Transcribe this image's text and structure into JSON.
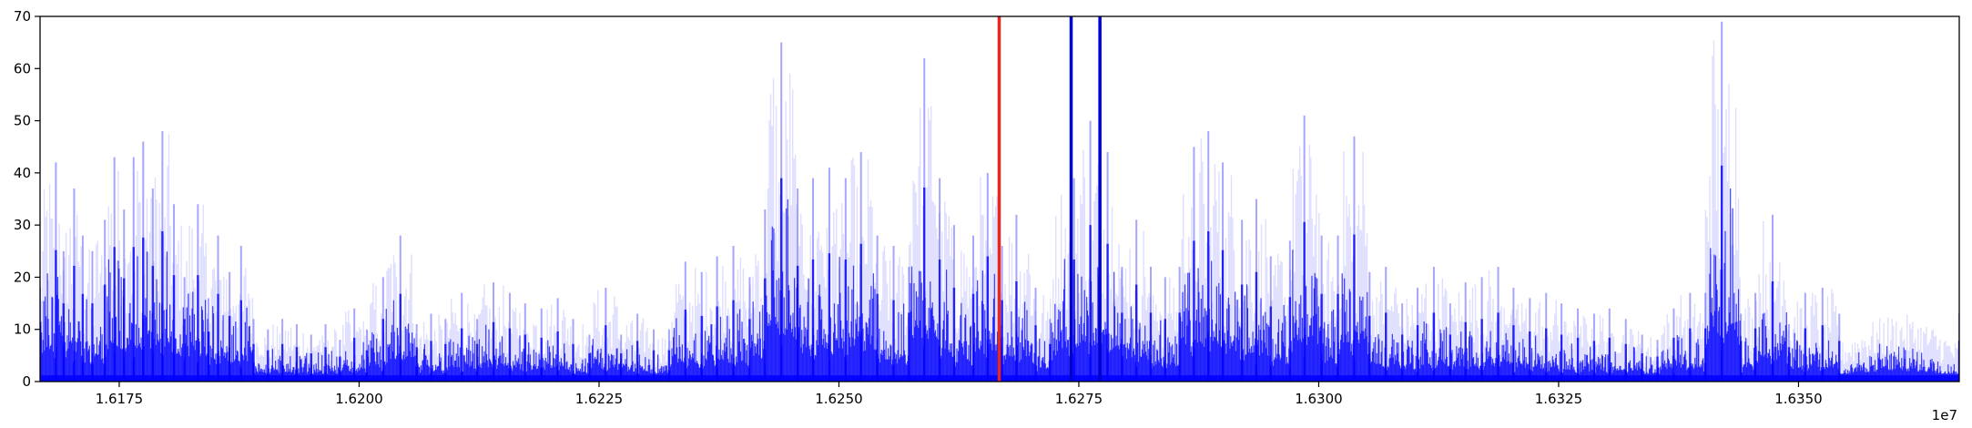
{
  "chart_data": {
    "type": "line",
    "title": "",
    "xlabel": "",
    "ylabel": "",
    "x_offset_label": "1e7",
    "xlim": [
      16.16675,
      16.36675
    ],
    "ylim": [
      0,
      70
    ],
    "grid": false,
    "legend": "none",
    "x_ticks": [
      {
        "value": 16.175,
        "label": "1.6175"
      },
      {
        "value": 16.2,
        "label": "1.6200"
      },
      {
        "value": 16.225,
        "label": "1.6225"
      },
      {
        "value": 16.25,
        "label": "1.6250"
      },
      {
        "value": 16.275,
        "label": "1.6275"
      },
      {
        "value": 16.3,
        "label": "1.6300"
      },
      {
        "value": 16.325,
        "label": "1.6325"
      },
      {
        "value": 16.35,
        "label": "1.6350"
      }
    ],
    "y_ticks": [
      {
        "value": 0,
        "label": "0"
      },
      {
        "value": 10,
        "label": "10"
      },
      {
        "value": 20,
        "label": "20"
      },
      {
        "value": 30,
        "label": "30"
      },
      {
        "value": 40,
        "label": "40"
      },
      {
        "value": 50,
        "label": "50"
      },
      {
        "value": 60,
        "label": "60"
      },
      {
        "value": 70,
        "label": "70"
      }
    ],
    "series_color": "#0000ff",
    "envelope": [
      [
        16.16675,
        18
      ],
      [
        16.1684,
        42
      ],
      [
        16.1692,
        25
      ],
      [
        16.1703,
        37
      ],
      [
        16.1712,
        28
      ],
      [
        16.1722,
        25
      ],
      [
        16.1735,
        31
      ],
      [
        16.1745,
        43
      ],
      [
        16.1755,
        33
      ],
      [
        16.1765,
        43
      ],
      [
        16.1775,
        46
      ],
      [
        16.1785,
        37
      ],
      [
        16.1795,
        48
      ],
      [
        16.1807,
        34
      ],
      [
        16.1818,
        20
      ],
      [
        16.1832,
        34
      ],
      [
        16.1843,
        16
      ],
      [
        16.1853,
        28
      ],
      [
        16.1865,
        21
      ],
      [
        16.1877,
        26
      ],
      [
        16.189,
        12
      ],
      [
        16.1905,
        10
      ],
      [
        16.192,
        12
      ],
      [
        16.1935,
        11
      ],
      [
        16.195,
        9
      ],
      [
        16.1965,
        11
      ],
      [
        16.198,
        8
      ],
      [
        16.1995,
        14
      ],
      [
        16.2008,
        10
      ],
      [
        16.2025,
        20
      ],
      [
        16.2043,
        28
      ],
      [
        16.206,
        11
      ],
      [
        16.2075,
        13
      ],
      [
        16.209,
        12
      ],
      [
        16.2107,
        17
      ],
      [
        16.2123,
        12
      ],
      [
        16.214,
        19
      ],
      [
        16.2157,
        17
      ],
      [
        16.2173,
        15
      ],
      [
        16.219,
        14
      ],
      [
        16.2207,
        16
      ],
      [
        16.2223,
        12
      ],
      [
        16.224,
        9
      ],
      [
        16.2257,
        18
      ],
      [
        16.2273,
        9
      ],
      [
        16.229,
        13
      ],
      [
        16.2307,
        10
      ],
      [
        16.2323,
        10
      ],
      [
        16.234,
        23
      ],
      [
        16.2357,
        21
      ],
      [
        16.2373,
        24
      ],
      [
        16.239,
        26
      ],
      [
        16.2407,
        20
      ],
      [
        16.2423,
        33
      ],
      [
        16.244,
        65
      ],
      [
        16.2457,
        37
      ],
      [
        16.2473,
        39
      ],
      [
        16.249,
        41
      ],
      [
        16.2507,
        39
      ],
      [
        16.2523,
        44
      ],
      [
        16.254,
        28
      ],
      [
        16.2557,
        26
      ],
      [
        16.2573,
        22
      ],
      [
        16.2589,
        62
      ],
      [
        16.2605,
        39
      ],
      [
        16.262,
        30
      ],
      [
        16.264,
        28
      ],
      [
        16.2655,
        40
      ],
      [
        16.267,
        26
      ],
      [
        16.2685,
        32
      ],
      [
        16.2705,
        18
      ],
      [
        16.272,
        12
      ],
      [
        16.2745,
        39
      ],
      [
        16.2762,
        50
      ],
      [
        16.278,
        44
      ],
      [
        16.2795,
        22
      ],
      [
        16.281,
        31
      ],
      [
        16.2825,
        22
      ],
      [
        16.284,
        20
      ],
      [
        16.2855,
        22
      ],
      [
        16.287,
        45
      ],
      [
        16.2885,
        48
      ],
      [
        16.29,
        42
      ],
      [
        16.292,
        31
      ],
      [
        16.2935,
        35
      ],
      [
        16.295,
        24
      ],
      [
        16.297,
        27
      ],
      [
        16.2985,
        51
      ],
      [
        16.3003,
        28
      ],
      [
        16.302,
        28
      ],
      [
        16.3037,
        47
      ],
      [
        16.3053,
        21
      ],
      [
        16.307,
        22
      ],
      [
        16.3087,
        15
      ],
      [
        16.3103,
        18
      ],
      [
        16.312,
        22
      ],
      [
        16.3137,
        15
      ],
      [
        16.3153,
        19
      ],
      [
        16.317,
        20
      ],
      [
        16.3187,
        22
      ],
      [
        16.3203,
        18
      ],
      [
        16.322,
        16
      ],
      [
        16.3237,
        17
      ],
      [
        16.3253,
        15
      ],
      [
        16.327,
        14
      ],
      [
        16.3287,
        13
      ],
      [
        16.3303,
        14
      ],
      [
        16.332,
        12
      ],
      [
        16.3337,
        9
      ],
      [
        16.3353,
        8
      ],
      [
        16.337,
        14
      ],
      [
        16.3387,
        17
      ],
      [
        16.3403,
        17
      ],
      [
        16.342,
        69
      ],
      [
        16.344,
        13
      ],
      [
        16.3455,
        17
      ],
      [
        16.3473,
        32
      ],
      [
        16.349,
        11
      ],
      [
        16.3507,
        17
      ],
      [
        16.3525,
        18
      ],
      [
        16.35425,
        13
      ],
      [
        16.36675,
        13
      ]
    ],
    "vertical_lines": [
      {
        "x": 16.2667,
        "color": "#e8261b"
      },
      {
        "x": 16.2742,
        "color": "#0000cc"
      },
      {
        "x": 16.2772,
        "color": "#0000cc"
      }
    ]
  }
}
